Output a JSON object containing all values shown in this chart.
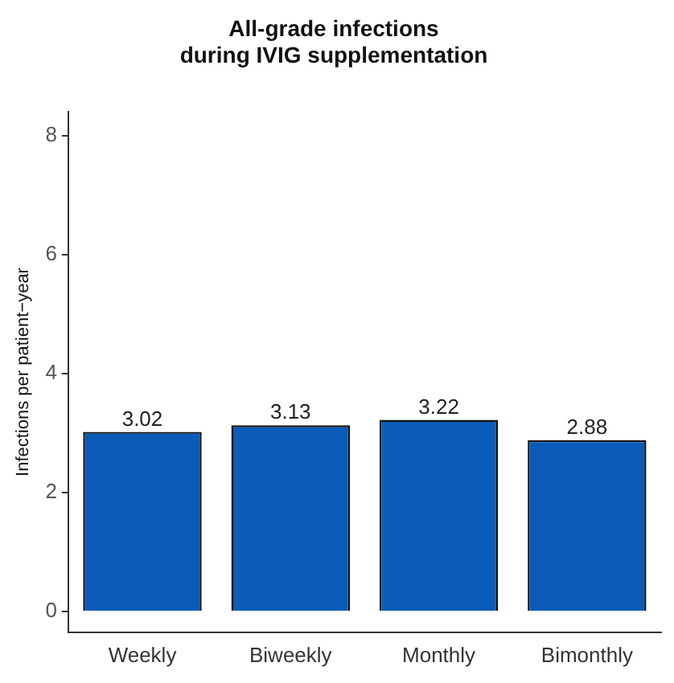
{
  "chart_data": {
    "type": "bar",
    "title": "All-grade infections\nduring IVIG supplementation",
    "ylabel": "Infections per patient−year",
    "categories": [
      "Weekly",
      "Biweekly",
      "Monthly",
      "Bimonthly"
    ],
    "values": [
      3.02,
      3.13,
      3.22,
      2.88
    ],
    "color": "#0a5cb8",
    "ylim": [
      -0.35,
      8.4
    ],
    "yticks": [
      0,
      2,
      4,
      6,
      8
    ],
    "grid": false,
    "legend": false,
    "data_labels": true
  }
}
